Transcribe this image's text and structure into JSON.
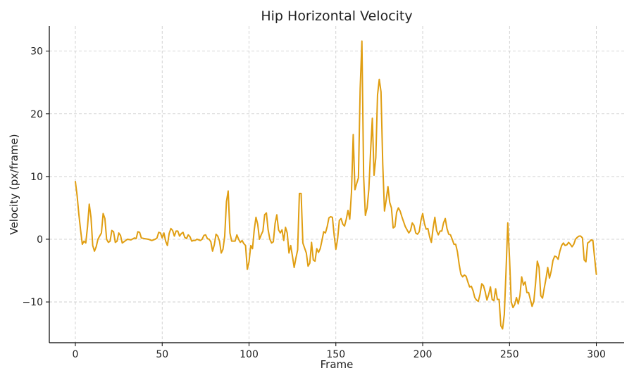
{
  "chart_data": {
    "type": "line",
    "title": "Hip Horizontal Velocity",
    "xlabel": "Frame",
    "ylabel": "Velocity (px/frame)",
    "xlim": [
      -15,
      316
    ],
    "ylim": [
      -16.5,
      34
    ],
    "xticks": [
      0,
      50,
      100,
      150,
      200,
      250,
      300
    ],
    "yticks": [
      -10,
      0,
      10,
      20,
      30
    ],
    "ytick_labels": [
      "−10",
      "0",
      "10",
      "20",
      "30"
    ],
    "grid": true,
    "series": [
      {
        "color": "#E09E12",
        "points": [
          [
            0,
            9.2
          ],
          [
            1,
            7
          ],
          [
            2,
            4
          ],
          [
            3,
            1.5
          ],
          [
            4,
            -0.8
          ],
          [
            5,
            -0.3
          ],
          [
            6,
            -0.6
          ],
          [
            7,
            2
          ],
          [
            8,
            5.6
          ],
          [
            9,
            3.5
          ],
          [
            10,
            -1
          ],
          [
            11,
            -1.9
          ],
          [
            12,
            -1.2
          ],
          [
            13,
            0
          ],
          [
            14,
            0.5
          ],
          [
            15,
            1
          ],
          [
            16,
            4.1
          ],
          [
            17,
            3.3
          ],
          [
            18,
            0
          ],
          [
            19,
            -0.5
          ],
          [
            20,
            -0.3
          ],
          [
            21,
            1.4
          ],
          [
            22,
            1.2
          ],
          [
            23,
            -0.5
          ],
          [
            24,
            -0.3
          ],
          [
            25,
            1
          ],
          [
            26,
            0.6
          ],
          [
            27,
            -0.6
          ],
          [
            28,
            -0.4
          ],
          [
            30,
            0
          ],
          [
            32,
            -0.1
          ],
          [
            34,
            0.2
          ],
          [
            35,
            0.1
          ],
          [
            36,
            1.2
          ],
          [
            37,
            1.1
          ],
          [
            38,
            0.2
          ],
          [
            40,
            0.1
          ],
          [
            42,
            0
          ],
          [
            44,
            -0.2
          ],
          [
            46,
            0
          ],
          [
            47,
            0.2
          ],
          [
            48,
            1.1
          ],
          [
            49,
            1
          ],
          [
            50,
            0.2
          ],
          [
            51,
            1
          ],
          [
            52,
            -0.3
          ],
          [
            53,
            -1
          ],
          [
            54,
            0.9
          ],
          [
            55,
            1.7
          ],
          [
            56,
            1.4
          ],
          [
            57,
            0.5
          ],
          [
            58,
            1.3
          ],
          [
            59,
            1.3
          ],
          [
            60,
            0.5
          ],
          [
            61,
            0.9
          ],
          [
            62,
            1.1
          ],
          [
            63,
            0.3
          ],
          [
            64,
            0.1
          ],
          [
            65,
            0.7
          ],
          [
            66,
            0.4
          ],
          [
            67,
            -0.3
          ],
          [
            68,
            -0.2
          ],
          [
            69,
            -0.2
          ],
          [
            70,
            0
          ],
          [
            72,
            -0.2
          ],
          [
            73,
            0
          ],
          [
            74,
            0.6
          ],
          [
            75,
            0.7
          ],
          [
            76,
            0.1
          ],
          [
            77,
            0
          ],
          [
            78,
            -0.4
          ],
          [
            79,
            -1.9
          ],
          [
            80,
            -0.9
          ],
          [
            81,
            0.8
          ],
          [
            82,
            0.5
          ],
          [
            83,
            -0.3
          ],
          [
            84,
            -2.2
          ],
          [
            85,
            -1.6
          ],
          [
            86,
            0.5
          ],
          [
            87,
            6
          ],
          [
            88,
            7.7
          ],
          [
            89,
            1
          ],
          [
            90,
            -0.3
          ],
          [
            91,
            -0.3
          ],
          [
            92,
            -0.3
          ],
          [
            93,
            0.7
          ],
          [
            94,
            0
          ],
          [
            95,
            -0.5
          ],
          [
            96,
            -0.2
          ],
          [
            97,
            -0.7
          ],
          [
            98,
            -1
          ],
          [
            99,
            -4.8
          ],
          [
            100,
            -3.6
          ],
          [
            101,
            -1
          ],
          [
            102,
            -1.5
          ],
          [
            103,
            1.5
          ],
          [
            104,
            3.5
          ],
          [
            105,
            2.4
          ],
          [
            106,
            0
          ],
          [
            107,
            0.7
          ],
          [
            108,
            1.3
          ],
          [
            109,
            3.9
          ],
          [
            110,
            4.2
          ],
          [
            111,
            1.5
          ],
          [
            112,
            0
          ],
          [
            113,
            -0.6
          ],
          [
            114,
            -0.4
          ],
          [
            115,
            2.5
          ],
          [
            116,
            3.9
          ],
          [
            117,
            1.5
          ],
          [
            118,
            1
          ],
          [
            119,
            1.5
          ],
          [
            120,
            -0.2
          ],
          [
            121,
            1.9
          ],
          [
            122,
            1
          ],
          [
            123,
            -2.2
          ],
          [
            124,
            -1
          ],
          [
            125,
            -2.7
          ],
          [
            126,
            -4.5
          ],
          [
            127,
            -3
          ],
          [
            128,
            -1.7
          ],
          [
            129,
            7.3
          ],
          [
            130,
            7.3
          ],
          [
            131,
            -0.6
          ],
          [
            132,
            -1.4
          ],
          [
            133,
            -2.2
          ],
          [
            134,
            -4.3
          ],
          [
            135,
            -3.8
          ],
          [
            136,
            -0.5
          ],
          [
            137,
            -3.3
          ],
          [
            138,
            -3.5
          ],
          [
            139,
            -1.5
          ],
          [
            140,
            -2.1
          ],
          [
            141,
            -1.5
          ],
          [
            142,
            -0.2
          ],
          [
            143,
            1.2
          ],
          [
            144,
            1
          ],
          [
            145,
            2
          ],
          [
            146,
            3.4
          ],
          [
            147,
            3.6
          ],
          [
            148,
            3.5
          ],
          [
            149,
            0.7
          ],
          [
            150,
            -1.6
          ],
          [
            151,
            0
          ],
          [
            152,
            3
          ],
          [
            153,
            3.3
          ],
          [
            154,
            2.4
          ],
          [
            155,
            2.1
          ],
          [
            156,
            3.2
          ],
          [
            157,
            4.6
          ],
          [
            158,
            3.2
          ],
          [
            159,
            7.5
          ],
          [
            160,
            16.7
          ],
          [
            161,
            7.9
          ],
          [
            162,
            8.9
          ],
          [
            163,
            9.8
          ],
          [
            164,
            24
          ],
          [
            165,
            31.6
          ],
          [
            166,
            10
          ],
          [
            167,
            3.8
          ],
          [
            168,
            5
          ],
          [
            169,
            8
          ],
          [
            170,
            14
          ],
          [
            171,
            19.3
          ],
          [
            172,
            10.2
          ],
          [
            173,
            13
          ],
          [
            174,
            23
          ],
          [
            175,
            25.5
          ],
          [
            176,
            23.5
          ],
          [
            177,
            12
          ],
          [
            178,
            4.5
          ],
          [
            179,
            6.3
          ],
          [
            180,
            8.4
          ],
          [
            181,
            5.9
          ],
          [
            182,
            5
          ],
          [
            183,
            1.8
          ],
          [
            184,
            2
          ],
          [
            185,
            4.3
          ],
          [
            186,
            5
          ],
          [
            187,
            4.5
          ],
          [
            188,
            3.6
          ],
          [
            189,
            2.8
          ],
          [
            190,
            2
          ],
          [
            191,
            1.5
          ],
          [
            192,
            1
          ],
          [
            193,
            1.4
          ],
          [
            194,
            2.6
          ],
          [
            195,
            2.2
          ],
          [
            196,
            1
          ],
          [
            197,
            0.8
          ],
          [
            198,
            1.2
          ],
          [
            199,
            3
          ],
          [
            200,
            4.1
          ],
          [
            201,
            2.5
          ],
          [
            202,
            1.6
          ],
          [
            203,
            1.7
          ],
          [
            204,
            0.4
          ],
          [
            205,
            -0.5
          ],
          [
            206,
            1.8
          ],
          [
            207,
            3.5
          ],
          [
            208,
            1.4
          ],
          [
            209,
            0.7
          ],
          [
            210,
            1.3
          ],
          [
            211,
            1.3
          ],
          [
            212,
            2.6
          ],
          [
            213,
            3.3
          ],
          [
            214,
            1.7
          ],
          [
            215,
            0.8
          ],
          [
            216,
            0.7
          ],
          [
            217,
            0
          ],
          [
            218,
            -0.8
          ],
          [
            219,
            -0.8
          ],
          [
            220,
            -2
          ],
          [
            221,
            -4
          ],
          [
            222,
            -5.6
          ],
          [
            223,
            -6
          ],
          [
            224,
            -5.7
          ],
          [
            225,
            -5.9
          ],
          [
            226,
            -6.8
          ],
          [
            227,
            -7.6
          ],
          [
            228,
            -7.5
          ],
          [
            229,
            -8.2
          ],
          [
            230,
            -9.3
          ],
          [
            231,
            -9.7
          ],
          [
            232,
            -9.9
          ],
          [
            233,
            -8.8
          ],
          [
            234,
            -7.1
          ],
          [
            235,
            -7.4
          ],
          [
            236,
            -8.4
          ],
          [
            237,
            -9.7
          ],
          [
            238,
            -8.8
          ],
          [
            239,
            -7.6
          ],
          [
            240,
            -9.6
          ],
          [
            241,
            -9.8
          ],
          [
            242,
            -7.9
          ],
          [
            243,
            -9.6
          ],
          [
            244,
            -9.6
          ],
          [
            245,
            -13.8
          ],
          [
            246,
            -14.3
          ],
          [
            247,
            -12
          ],
          [
            248,
            -5
          ],
          [
            249,
            2.6
          ],
          [
            250,
            -3
          ],
          [
            251,
            -10
          ],
          [
            252,
            -10.9
          ],
          [
            253,
            -10.4
          ],
          [
            254,
            -9.3
          ],
          [
            255,
            -10.3
          ],
          [
            256,
            -9
          ],
          [
            257,
            -6
          ],
          [
            258,
            -7.3
          ],
          [
            259,
            -6.8
          ],
          [
            260,
            -8.5
          ],
          [
            261,
            -8.5
          ],
          [
            262,
            -9.6
          ],
          [
            263,
            -10.7
          ],
          [
            264,
            -9.9
          ],
          [
            265,
            -7
          ],
          [
            266,
            -3.5
          ],
          [
            267,
            -4.5
          ],
          [
            268,
            -9
          ],
          [
            269,
            -9.4
          ],
          [
            270,
            -7.8
          ],
          [
            271,
            -6.3
          ],
          [
            272,
            -4.5
          ],
          [
            273,
            -6.2
          ],
          [
            274,
            -5.1
          ],
          [
            275,
            -3.4
          ],
          [
            276,
            -2.7
          ],
          [
            277,
            -2.8
          ],
          [
            278,
            -3.2
          ],
          [
            279,
            -1.9
          ],
          [
            280,
            -1
          ],
          [
            281,
            -0.6
          ],
          [
            282,
            -1
          ],
          [
            283,
            -0.9
          ],
          [
            284,
            -0.5
          ],
          [
            285,
            -0.8
          ],
          [
            286,
            -1.2
          ],
          [
            287,
            -0.8
          ],
          [
            288,
            0
          ],
          [
            289,
            0.3
          ],
          [
            290,
            0.5
          ],
          [
            291,
            0.5
          ],
          [
            292,
            0.2
          ],
          [
            293,
            -3.3
          ],
          [
            294,
            -3.6
          ],
          [
            295,
            -0.6
          ],
          [
            296,
            -0.4
          ],
          [
            297,
            -0.1
          ],
          [
            298,
            -0.2
          ],
          [
            299,
            -3
          ],
          [
            300,
            -5.6
          ]
        ]
      }
    ]
  }
}
